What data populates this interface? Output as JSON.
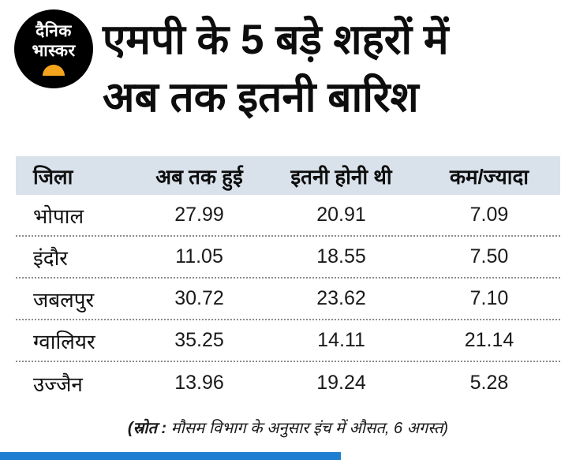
{
  "brand": {
    "logo_line1": "दैनिक",
    "logo_line2": "भास्कर"
  },
  "header": {
    "title_line1": "एमपी के 5 बड़े शहरों में",
    "title_line2": "अब तक इतनी बारिश"
  },
  "table": {
    "headers": [
      "जिला",
      "अब तक हुई",
      "इतनी होनी थी",
      "कम/ज्यादा"
    ],
    "rows": [
      [
        "भोपाल",
        "27.99",
        "20.91",
        "7.09"
      ],
      [
        "इंदौर",
        "11.05",
        "18.55",
        "7.50"
      ],
      [
        "जबलपुर",
        "30.72",
        "23.62",
        "7.10"
      ],
      [
        "ग्वालियर",
        "35.25",
        "14.11",
        "21.14"
      ],
      [
        "उज्जैन",
        "13.96",
        "19.24",
        "5.28"
      ]
    ]
  },
  "footer": {
    "source_prefix": "(स्रोत :",
    "source_text": " मौसम विभाग के अनुसार इंच में औसत, 6 अगस्त)"
  },
  "colors": {
    "table_header_bg": "#d9e2eb",
    "accent_blue": "#1f7fd0",
    "logo_bg": "#000000",
    "logo_sun": "#f5a51d"
  },
  "chart_data": {
    "type": "table",
    "title": "एमपी के 5 बड़े शहरों में अब तक इतनी बारिश",
    "columns": [
      "जिला",
      "अब तक हुई",
      "इतनी होनी थी",
      "कम/ज्यादा"
    ],
    "rows": [
      {
        "district": "भोपाल",
        "so_far": 27.99,
        "expected": 20.91,
        "difference": 7.09
      },
      {
        "district": "इंदौर",
        "so_far": 11.05,
        "expected": 18.55,
        "difference": 7.5
      },
      {
        "district": "जबलपुर",
        "so_far": 30.72,
        "expected": 23.62,
        "difference": 7.1
      },
      {
        "district": "ग्वालियर",
        "so_far": 35.25,
        "expected": 14.11,
        "difference": 21.14
      },
      {
        "district": "उज्जैन",
        "so_far": 13.96,
        "expected": 19.24,
        "difference": 5.28
      }
    ],
    "unit": "इंच (औसत)",
    "note": "(स्रोत : मौसम विभाग के अनुसार इंच में औसत, 6 अगस्त)"
  }
}
